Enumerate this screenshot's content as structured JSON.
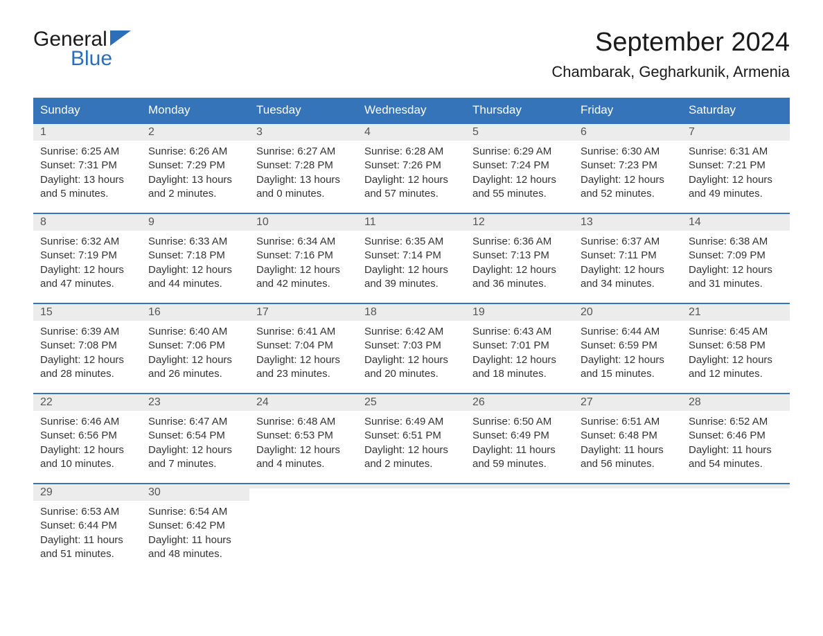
{
  "logo": {
    "text1": "General",
    "text2": "Blue",
    "icon_color": "#2c6fb8"
  },
  "title": "September 2024",
  "subtitle": "Chambarak, Gegharkunik, Armenia",
  "header_bg": "#3574b9",
  "header_fg": "#ffffff",
  "daynum_bg": "#ececec",
  "border_color": "#3574b9",
  "text_color": "#333333",
  "columns": [
    "Sunday",
    "Monday",
    "Tuesday",
    "Wednesday",
    "Thursday",
    "Friday",
    "Saturday"
  ],
  "weeks": [
    [
      {
        "n": "1",
        "sr": "6:25 AM",
        "ss": "7:31 PM",
        "dl": "13 hours and 5 minutes."
      },
      {
        "n": "2",
        "sr": "6:26 AM",
        "ss": "7:29 PM",
        "dl": "13 hours and 2 minutes."
      },
      {
        "n": "3",
        "sr": "6:27 AM",
        "ss": "7:28 PM",
        "dl": "13 hours and 0 minutes."
      },
      {
        "n": "4",
        "sr": "6:28 AM",
        "ss": "7:26 PM",
        "dl": "12 hours and 57 minutes."
      },
      {
        "n": "5",
        "sr": "6:29 AM",
        "ss": "7:24 PM",
        "dl": "12 hours and 55 minutes."
      },
      {
        "n": "6",
        "sr": "6:30 AM",
        "ss": "7:23 PM",
        "dl": "12 hours and 52 minutes."
      },
      {
        "n": "7",
        "sr": "6:31 AM",
        "ss": "7:21 PM",
        "dl": "12 hours and 49 minutes."
      }
    ],
    [
      {
        "n": "8",
        "sr": "6:32 AM",
        "ss": "7:19 PM",
        "dl": "12 hours and 47 minutes."
      },
      {
        "n": "9",
        "sr": "6:33 AM",
        "ss": "7:18 PM",
        "dl": "12 hours and 44 minutes."
      },
      {
        "n": "10",
        "sr": "6:34 AM",
        "ss": "7:16 PM",
        "dl": "12 hours and 42 minutes."
      },
      {
        "n": "11",
        "sr": "6:35 AM",
        "ss": "7:14 PM",
        "dl": "12 hours and 39 minutes."
      },
      {
        "n": "12",
        "sr": "6:36 AM",
        "ss": "7:13 PM",
        "dl": "12 hours and 36 minutes."
      },
      {
        "n": "13",
        "sr": "6:37 AM",
        "ss": "7:11 PM",
        "dl": "12 hours and 34 minutes."
      },
      {
        "n": "14",
        "sr": "6:38 AM",
        "ss": "7:09 PM",
        "dl": "12 hours and 31 minutes."
      }
    ],
    [
      {
        "n": "15",
        "sr": "6:39 AM",
        "ss": "7:08 PM",
        "dl": "12 hours and 28 minutes."
      },
      {
        "n": "16",
        "sr": "6:40 AM",
        "ss": "7:06 PM",
        "dl": "12 hours and 26 minutes."
      },
      {
        "n": "17",
        "sr": "6:41 AM",
        "ss": "7:04 PM",
        "dl": "12 hours and 23 minutes."
      },
      {
        "n": "18",
        "sr": "6:42 AM",
        "ss": "7:03 PM",
        "dl": "12 hours and 20 minutes."
      },
      {
        "n": "19",
        "sr": "6:43 AM",
        "ss": "7:01 PM",
        "dl": "12 hours and 18 minutes."
      },
      {
        "n": "20",
        "sr": "6:44 AM",
        "ss": "6:59 PM",
        "dl": "12 hours and 15 minutes."
      },
      {
        "n": "21",
        "sr": "6:45 AM",
        "ss": "6:58 PM",
        "dl": "12 hours and 12 minutes."
      }
    ],
    [
      {
        "n": "22",
        "sr": "6:46 AM",
        "ss": "6:56 PM",
        "dl": "12 hours and 10 minutes."
      },
      {
        "n": "23",
        "sr": "6:47 AM",
        "ss": "6:54 PM",
        "dl": "12 hours and 7 minutes."
      },
      {
        "n": "24",
        "sr": "6:48 AM",
        "ss": "6:53 PM",
        "dl": "12 hours and 4 minutes."
      },
      {
        "n": "25",
        "sr": "6:49 AM",
        "ss": "6:51 PM",
        "dl": "12 hours and 2 minutes."
      },
      {
        "n": "26",
        "sr": "6:50 AM",
        "ss": "6:49 PM",
        "dl": "11 hours and 59 minutes."
      },
      {
        "n": "27",
        "sr": "6:51 AM",
        "ss": "6:48 PM",
        "dl": "11 hours and 56 minutes."
      },
      {
        "n": "28",
        "sr": "6:52 AM",
        "ss": "6:46 PM",
        "dl": "11 hours and 54 minutes."
      }
    ],
    [
      {
        "n": "29",
        "sr": "6:53 AM",
        "ss": "6:44 PM",
        "dl": "11 hours and 51 minutes."
      },
      {
        "n": "30",
        "sr": "6:54 AM",
        "ss": "6:42 PM",
        "dl": "11 hours and 48 minutes."
      },
      {
        "empty": true
      },
      {
        "empty": true
      },
      {
        "empty": true
      },
      {
        "empty": true
      },
      {
        "empty": true
      }
    ]
  ],
  "labels": {
    "sunrise": "Sunrise:",
    "sunset": "Sunset:",
    "daylight": "Daylight:"
  }
}
